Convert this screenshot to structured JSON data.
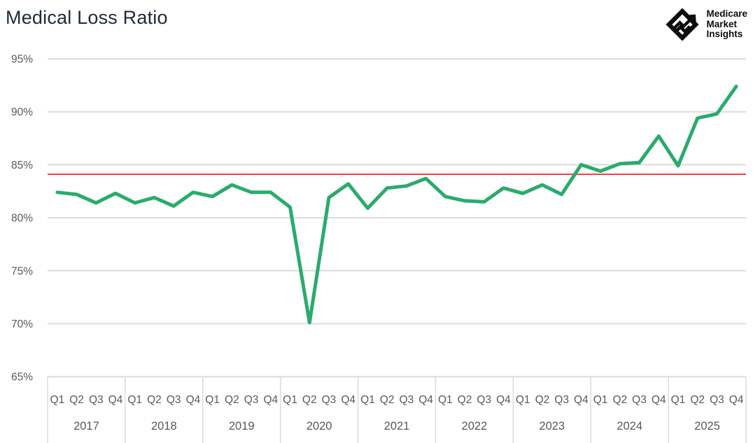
{
  "header": {
    "title": "Medical Loss Ratio"
  },
  "logo": {
    "lines": [
      "Medicare",
      "Market",
      "Insights"
    ]
  },
  "colors": {
    "series_green": "#2aab6c",
    "reference_red": "#fa0000",
    "grid": "#dbdbdb",
    "axis_text": "#58595b",
    "title_text": "#1e2a38",
    "logo_black": "#0d0d0d"
  },
  "chart_data": {
    "type": "line",
    "title": "Medical Loss Ratio",
    "unit": "%",
    "grid": "horizontal",
    "legend": "none",
    "ylim": [
      65,
      95
    ],
    "y_ticks": [
      95,
      90,
      85,
      80,
      75,
      70,
      65
    ],
    "y_tick_suffix": "%",
    "years": [
      "2017",
      "2018",
      "2019",
      "2020",
      "2021",
      "2022",
      "2023",
      "2024",
      "2025"
    ],
    "quarter_labels": [
      "Q1",
      "Q2",
      "Q3",
      "Q4"
    ],
    "reference_line": {
      "value": 84.1,
      "color": "#fa0000"
    },
    "series": [
      {
        "name": "Medical Loss Ratio",
        "color": "#2aab6c",
        "values": [
          82.4,
          82.2,
          81.4,
          82.3,
          81.4,
          81.9,
          81.1,
          82.4,
          82.0,
          83.1,
          82.4,
          82.4,
          81.0,
          70.1,
          81.9,
          83.2,
          80.9,
          82.8,
          83.0,
          83.7,
          82.0,
          81.6,
          81.5,
          82.8,
          82.3,
          83.1,
          82.2,
          85.0,
          84.4,
          85.1,
          85.2,
          87.7,
          84.9,
          89.4,
          89.8,
          92.4
        ]
      }
    ]
  }
}
